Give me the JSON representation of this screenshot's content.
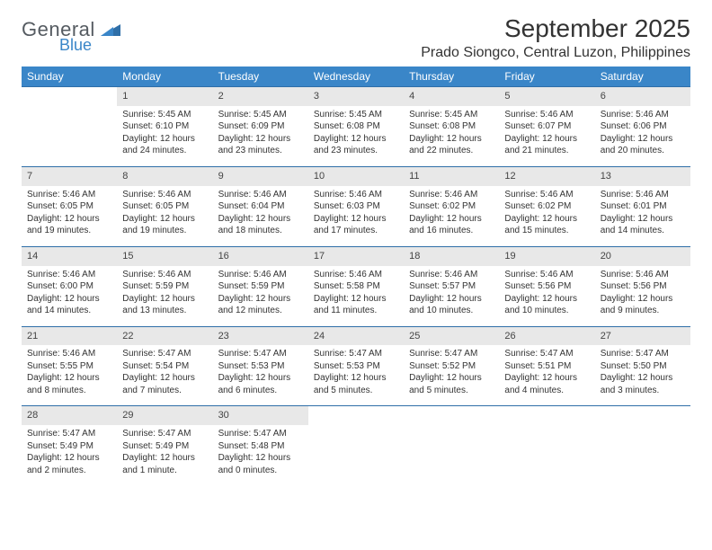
{
  "brand": {
    "general": "General",
    "blue": "Blue"
  },
  "title": "September 2025",
  "location": "Prado Siongco, Central Luzon, Philippines",
  "colors": {
    "header_bg": "#3a86c8",
    "header_text": "#ffffff",
    "daynum_bg": "#e8e8e8",
    "row_border": "#2f6fa8",
    "text": "#333333",
    "logo_gray": "#555b61",
    "logo_blue": "#3a86c8",
    "background": "#ffffff"
  },
  "layout": {
    "type": "calendar",
    "columns": 7,
    "rows": 5,
    "font_family": "Arial",
    "cell_font_size_pt": 7.5,
    "header_font_size_pt": 9,
    "title_font_size_pt": 21,
    "location_font_size_pt": 12
  },
  "weekdays": [
    "Sunday",
    "Monday",
    "Tuesday",
    "Wednesday",
    "Thursday",
    "Friday",
    "Saturday"
  ],
  "weeks": [
    [
      null,
      {
        "n": "1",
        "sr": "Sunrise: 5:45 AM",
        "ss": "Sunset: 6:10 PM",
        "dl": "Daylight: 12 hours and 24 minutes."
      },
      {
        "n": "2",
        "sr": "Sunrise: 5:45 AM",
        "ss": "Sunset: 6:09 PM",
        "dl": "Daylight: 12 hours and 23 minutes."
      },
      {
        "n": "3",
        "sr": "Sunrise: 5:45 AM",
        "ss": "Sunset: 6:08 PM",
        "dl": "Daylight: 12 hours and 23 minutes."
      },
      {
        "n": "4",
        "sr": "Sunrise: 5:45 AM",
        "ss": "Sunset: 6:08 PM",
        "dl": "Daylight: 12 hours and 22 minutes."
      },
      {
        "n": "5",
        "sr": "Sunrise: 5:46 AM",
        "ss": "Sunset: 6:07 PM",
        "dl": "Daylight: 12 hours and 21 minutes."
      },
      {
        "n": "6",
        "sr": "Sunrise: 5:46 AM",
        "ss": "Sunset: 6:06 PM",
        "dl": "Daylight: 12 hours and 20 minutes."
      }
    ],
    [
      {
        "n": "7",
        "sr": "Sunrise: 5:46 AM",
        "ss": "Sunset: 6:05 PM",
        "dl": "Daylight: 12 hours and 19 minutes."
      },
      {
        "n": "8",
        "sr": "Sunrise: 5:46 AM",
        "ss": "Sunset: 6:05 PM",
        "dl": "Daylight: 12 hours and 19 minutes."
      },
      {
        "n": "9",
        "sr": "Sunrise: 5:46 AM",
        "ss": "Sunset: 6:04 PM",
        "dl": "Daylight: 12 hours and 18 minutes."
      },
      {
        "n": "10",
        "sr": "Sunrise: 5:46 AM",
        "ss": "Sunset: 6:03 PM",
        "dl": "Daylight: 12 hours and 17 minutes."
      },
      {
        "n": "11",
        "sr": "Sunrise: 5:46 AM",
        "ss": "Sunset: 6:02 PM",
        "dl": "Daylight: 12 hours and 16 minutes."
      },
      {
        "n": "12",
        "sr": "Sunrise: 5:46 AM",
        "ss": "Sunset: 6:02 PM",
        "dl": "Daylight: 12 hours and 15 minutes."
      },
      {
        "n": "13",
        "sr": "Sunrise: 5:46 AM",
        "ss": "Sunset: 6:01 PM",
        "dl": "Daylight: 12 hours and 14 minutes."
      }
    ],
    [
      {
        "n": "14",
        "sr": "Sunrise: 5:46 AM",
        "ss": "Sunset: 6:00 PM",
        "dl": "Daylight: 12 hours and 14 minutes."
      },
      {
        "n": "15",
        "sr": "Sunrise: 5:46 AM",
        "ss": "Sunset: 5:59 PM",
        "dl": "Daylight: 12 hours and 13 minutes."
      },
      {
        "n": "16",
        "sr": "Sunrise: 5:46 AM",
        "ss": "Sunset: 5:59 PM",
        "dl": "Daylight: 12 hours and 12 minutes."
      },
      {
        "n": "17",
        "sr": "Sunrise: 5:46 AM",
        "ss": "Sunset: 5:58 PM",
        "dl": "Daylight: 12 hours and 11 minutes."
      },
      {
        "n": "18",
        "sr": "Sunrise: 5:46 AM",
        "ss": "Sunset: 5:57 PM",
        "dl": "Daylight: 12 hours and 10 minutes."
      },
      {
        "n": "19",
        "sr": "Sunrise: 5:46 AM",
        "ss": "Sunset: 5:56 PM",
        "dl": "Daylight: 12 hours and 10 minutes."
      },
      {
        "n": "20",
        "sr": "Sunrise: 5:46 AM",
        "ss": "Sunset: 5:56 PM",
        "dl": "Daylight: 12 hours and 9 minutes."
      }
    ],
    [
      {
        "n": "21",
        "sr": "Sunrise: 5:46 AM",
        "ss": "Sunset: 5:55 PM",
        "dl": "Daylight: 12 hours and 8 minutes."
      },
      {
        "n": "22",
        "sr": "Sunrise: 5:47 AM",
        "ss": "Sunset: 5:54 PM",
        "dl": "Daylight: 12 hours and 7 minutes."
      },
      {
        "n": "23",
        "sr": "Sunrise: 5:47 AM",
        "ss": "Sunset: 5:53 PM",
        "dl": "Daylight: 12 hours and 6 minutes."
      },
      {
        "n": "24",
        "sr": "Sunrise: 5:47 AM",
        "ss": "Sunset: 5:53 PM",
        "dl": "Daylight: 12 hours and 5 minutes."
      },
      {
        "n": "25",
        "sr": "Sunrise: 5:47 AM",
        "ss": "Sunset: 5:52 PM",
        "dl": "Daylight: 12 hours and 5 minutes."
      },
      {
        "n": "26",
        "sr": "Sunrise: 5:47 AM",
        "ss": "Sunset: 5:51 PM",
        "dl": "Daylight: 12 hours and 4 minutes."
      },
      {
        "n": "27",
        "sr": "Sunrise: 5:47 AM",
        "ss": "Sunset: 5:50 PM",
        "dl": "Daylight: 12 hours and 3 minutes."
      }
    ],
    [
      {
        "n": "28",
        "sr": "Sunrise: 5:47 AM",
        "ss": "Sunset: 5:49 PM",
        "dl": "Daylight: 12 hours and 2 minutes."
      },
      {
        "n": "29",
        "sr": "Sunrise: 5:47 AM",
        "ss": "Sunset: 5:49 PM",
        "dl": "Daylight: 12 hours and 1 minute."
      },
      {
        "n": "30",
        "sr": "Sunrise: 5:47 AM",
        "ss": "Sunset: 5:48 PM",
        "dl": "Daylight: 12 hours and 0 minutes."
      },
      null,
      null,
      null,
      null
    ]
  ]
}
